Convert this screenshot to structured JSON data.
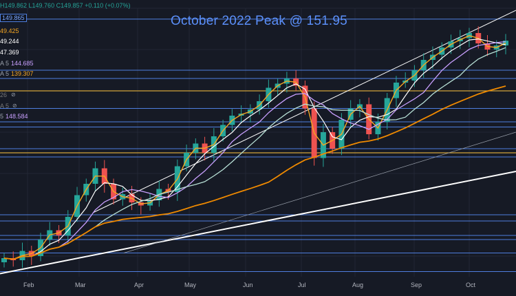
{
  "chart_data": {
    "type": "candlestick",
    "title": "October 2022 Peak @ 151.95",
    "ohlc_header": "H149.862 L149.760 C149.857 +0.110 (+0.07%)",
    "price_box": "149.865",
    "legend": [
      {
        "label": "",
        "value": "49.425",
        "color": "#f5a623"
      },
      {
        "label": "",
        "value": "49.244",
        "color": "#ffffff"
      },
      {
        "label": "",
        "value": "47.369",
        "color": "#ffffff"
      },
      {
        "label": "A 5",
        "value": "144.685",
        "color": "#c9a0ff"
      },
      {
        "label": "A 5",
        "value": "139.307",
        "color": "#f5a623"
      },
      {
        "label": "26",
        "value": "",
        "color": "#777777"
      },
      {
        "label": "A 5",
        "value": "",
        "color": "#777777"
      },
      {
        "label": "5",
        "value": "148.584",
        "color": "#c9a0ff"
      }
    ],
    "x_tick_labels": [
      "Feb",
      "Mar",
      "Apr",
      "May",
      "Jun",
      "Jul",
      "Aug",
      "Sep",
      "Oct"
    ],
    "ylim": [
      127,
      153
    ],
    "series": [
      {
        "name": "",
        "type": "candles",
        "values": [
          128.8,
          128.6,
          129.5,
          129.0,
          130.6,
          131.5,
          131.0,
          132.8,
          134.9,
          136.0,
          137.5,
          136.0,
          134.5,
          135.0,
          134.2,
          133.9,
          134.4,
          135.5,
          135.2,
          137.7,
          139.0,
          139.9,
          139.0,
          140.6,
          141.7,
          142.6,
          142.8,
          143.2,
          144.0,
          145.3,
          145.7,
          146.2,
          145.5,
          143.3,
          138.5,
          141.0,
          139.4,
          142.2,
          143.3,
          143.7,
          140.8,
          142.0,
          144.3,
          145.8,
          146.0,
          147.0,
          148.0,
          148.5,
          149.2,
          149.8,
          150.1,
          150.6,
          149.6,
          149.0,
          149.4,
          149.86
        ]
      },
      {
        "name": "",
        "type": "ma",
        "color": "#f5a623",
        "values": []
      },
      {
        "name": "",
        "type": "ma",
        "color": "#ffffff",
        "values": []
      },
      {
        "name": "",
        "type": "ma",
        "color": "#c9a0ff",
        "values": []
      },
      {
        "name": "",
        "type": "ma",
        "color": "#f5a623",
        "values": []
      }
    ],
    "horizontal_levels": [
      151.95,
      147.0,
      146.2,
      145.0,
      143.3,
      142.0,
      141.5,
      139.4,
      139.0,
      138.6,
      133.0,
      132.4,
      131.0,
      130.6,
      129.3,
      127.5
    ],
    "grid": true
  }
}
